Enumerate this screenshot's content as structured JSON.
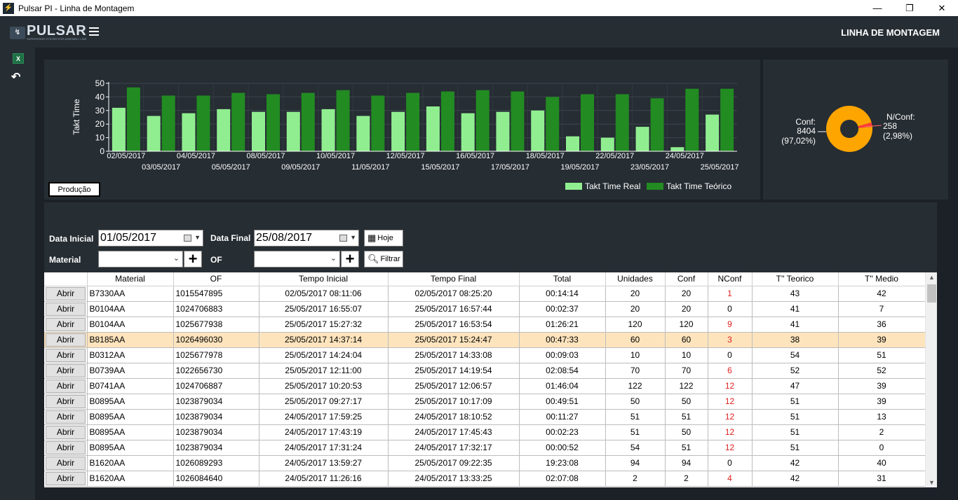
{
  "window": {
    "title": "Pulsar PI - Linha de Montagem",
    "minimize": "—",
    "maximize": "❐",
    "close": "✕"
  },
  "header": {
    "logo_name": "PULSAR",
    "logo_tag": "SUPERVISOR SYSTEM FOR ASSEMBLY LINE",
    "section_title": "LINHA DE MONTAGEM"
  },
  "chart_data": [
    {
      "type": "bar",
      "ylabel": "Takt Time",
      "ylim": [
        0,
        50
      ],
      "yticks": [
        0,
        10,
        20,
        30,
        40,
        50
      ],
      "legend_position": "bottom-right",
      "categories": [
        "02/05/2017",
        "03/05/2017",
        "04/05/2017",
        "05/05/2017",
        "08/05/2017",
        "09/05/2017",
        "10/05/2017",
        "11/05/2017",
        "12/05/2017",
        "15/05/2017",
        "16/05/2017",
        "17/05/2017",
        "18/05/2017",
        "19/05/2017",
        "22/05/2017",
        "23/05/2017",
        "24/05/2017",
        "25/05/2017"
      ],
      "series": [
        {
          "name": "Takt Time Real",
          "color": "#90ee90",
          "values": [
            32,
            26,
            28,
            31,
            29,
            29,
            31,
            26,
            29,
            33,
            28,
            29,
            30,
            11,
            10,
            18,
            3,
            27
          ]
        },
        {
          "name": "Takt Time Teórico",
          "color": "#228b22",
          "values": [
            47,
            41,
            41,
            43,
            42,
            43,
            45,
            41,
            43,
            44,
            45,
            44,
            40,
            42,
            42,
            39,
            46,
            46
          ]
        }
      ]
    },
    {
      "type": "pie",
      "style": "donut",
      "slices": [
        {
          "name": "Conf",
          "label_name": "Conf:",
          "value": 8404,
          "label_value": "8404",
          "label_pct": "(97,02%)",
          "color": "#ffa500"
        },
        {
          "name": "N/Conf",
          "label_name": "N/Conf:",
          "value": 258,
          "label_value": "258",
          "label_pct": "(2,98%)",
          "color": "#ff3b3b"
        }
      ]
    }
  ],
  "chart_controls": {
    "production_button": "Produção"
  },
  "filters": {
    "start_label": "Data Inicial",
    "start_value": "01/05/2017",
    "end_label": "Data Final",
    "end_value": "25/08/2017",
    "today_button": "Hoje",
    "material_label": "Material",
    "material_value": "",
    "of_label": "OF",
    "of_value": "",
    "plus": "+",
    "filter_button": "Filtrar"
  },
  "table": {
    "open_label": "Abrir",
    "columns": [
      "",
      "Material",
      "OF",
      "Tempo Inicial",
      "Tempo Final",
      "Total",
      "Unidades",
      "Conf",
      "NConf",
      "T'' Teorico",
      "T'' Medio"
    ],
    "rows": [
      {
        "material": "B7330AA",
        "of": "1015547895",
        "start": "02/05/2017 08:11:06",
        "end": "02/05/2017 08:25:20",
        "total": "00:14:14",
        "units": "20",
        "conf": "20",
        "nconf": "1",
        "theo": "43",
        "avg": "42"
      },
      {
        "material": "B0104AA",
        "of": "1024706883",
        "start": "25/05/2017 16:55:07",
        "end": "25/05/2017 16:57:44",
        "total": "00:02:37",
        "units": "20",
        "conf": "20",
        "nconf": "0",
        "theo": "41",
        "avg": "7"
      },
      {
        "material": "B0104AA",
        "of": "1025677938",
        "start": "25/05/2017 15:27:32",
        "end": "25/05/2017 16:53:54",
        "total": "01:26:21",
        "units": "120",
        "conf": "120",
        "nconf": "9",
        "theo": "41",
        "avg": "36"
      },
      {
        "material": "B8185AA",
        "of": "1026496030",
        "start": "25/05/2017 14:37:14",
        "end": "25/05/2017 15:24:47",
        "total": "00:47:33",
        "units": "60",
        "conf": "60",
        "nconf": "3",
        "theo": "38",
        "avg": "39",
        "selected": true
      },
      {
        "material": "B0312AA",
        "of": "1025677978",
        "start": "25/05/2017 14:24:04",
        "end": "25/05/2017 14:33:08",
        "total": "00:09:03",
        "units": "10",
        "conf": "10",
        "nconf": "0",
        "theo": "54",
        "avg": "51"
      },
      {
        "material": "B0739AA",
        "of": "1022656730",
        "start": "25/05/2017 12:11:00",
        "end": "25/05/2017 14:19:54",
        "total": "02:08:54",
        "units": "70",
        "conf": "70",
        "nconf": "6",
        "theo": "52",
        "avg": "52"
      },
      {
        "material": "B0741AA",
        "of": "1024706887",
        "start": "25/05/2017 10:20:53",
        "end": "25/05/2017 12:06:57",
        "total": "01:46:04",
        "units": "122",
        "conf": "122",
        "nconf": "12",
        "theo": "47",
        "avg": "39"
      },
      {
        "material": "B0895AA",
        "of": "1023879034",
        "start": "25/05/2017 09:27:17",
        "end": "25/05/2017 10:17:09",
        "total": "00:49:51",
        "units": "50",
        "conf": "50",
        "nconf": "12",
        "theo": "51",
        "avg": "39"
      },
      {
        "material": "B0895AA",
        "of": "1023879034",
        "start": "24/05/2017 17:59:25",
        "end": "24/05/2017 18:10:52",
        "total": "00:11:27",
        "units": "51",
        "conf": "51",
        "nconf": "12",
        "theo": "51",
        "avg": "13"
      },
      {
        "material": "B0895AA",
        "of": "1023879034",
        "start": "24/05/2017 17:43:19",
        "end": "24/05/2017 17:45:43",
        "total": "00:02:23",
        "units": "51",
        "conf": "50",
        "nconf": "12",
        "theo": "51",
        "avg": "2"
      },
      {
        "material": "B0895AA",
        "of": "1023879034",
        "start": "24/05/2017 17:31:24",
        "end": "24/05/2017 17:32:17",
        "total": "00:00:52",
        "units": "54",
        "conf": "51",
        "nconf": "12",
        "theo": "51",
        "avg": "0"
      },
      {
        "material": "B1620AA",
        "of": "1026089293",
        "start": "24/05/2017 13:59:27",
        "end": "25/05/2017 09:22:35",
        "total": "19:23:08",
        "units": "94",
        "conf": "94",
        "nconf": "0",
        "theo": "42",
        "avg": "40"
      },
      {
        "material": "B1620AA",
        "of": "1026084640",
        "start": "24/05/2017 11:26:16",
        "end": "24/05/2017 13:33:25",
        "total": "02:07:08",
        "units": "2",
        "conf": "2",
        "nconf": "4",
        "theo": "42",
        "avg": "31"
      }
    ]
  }
}
